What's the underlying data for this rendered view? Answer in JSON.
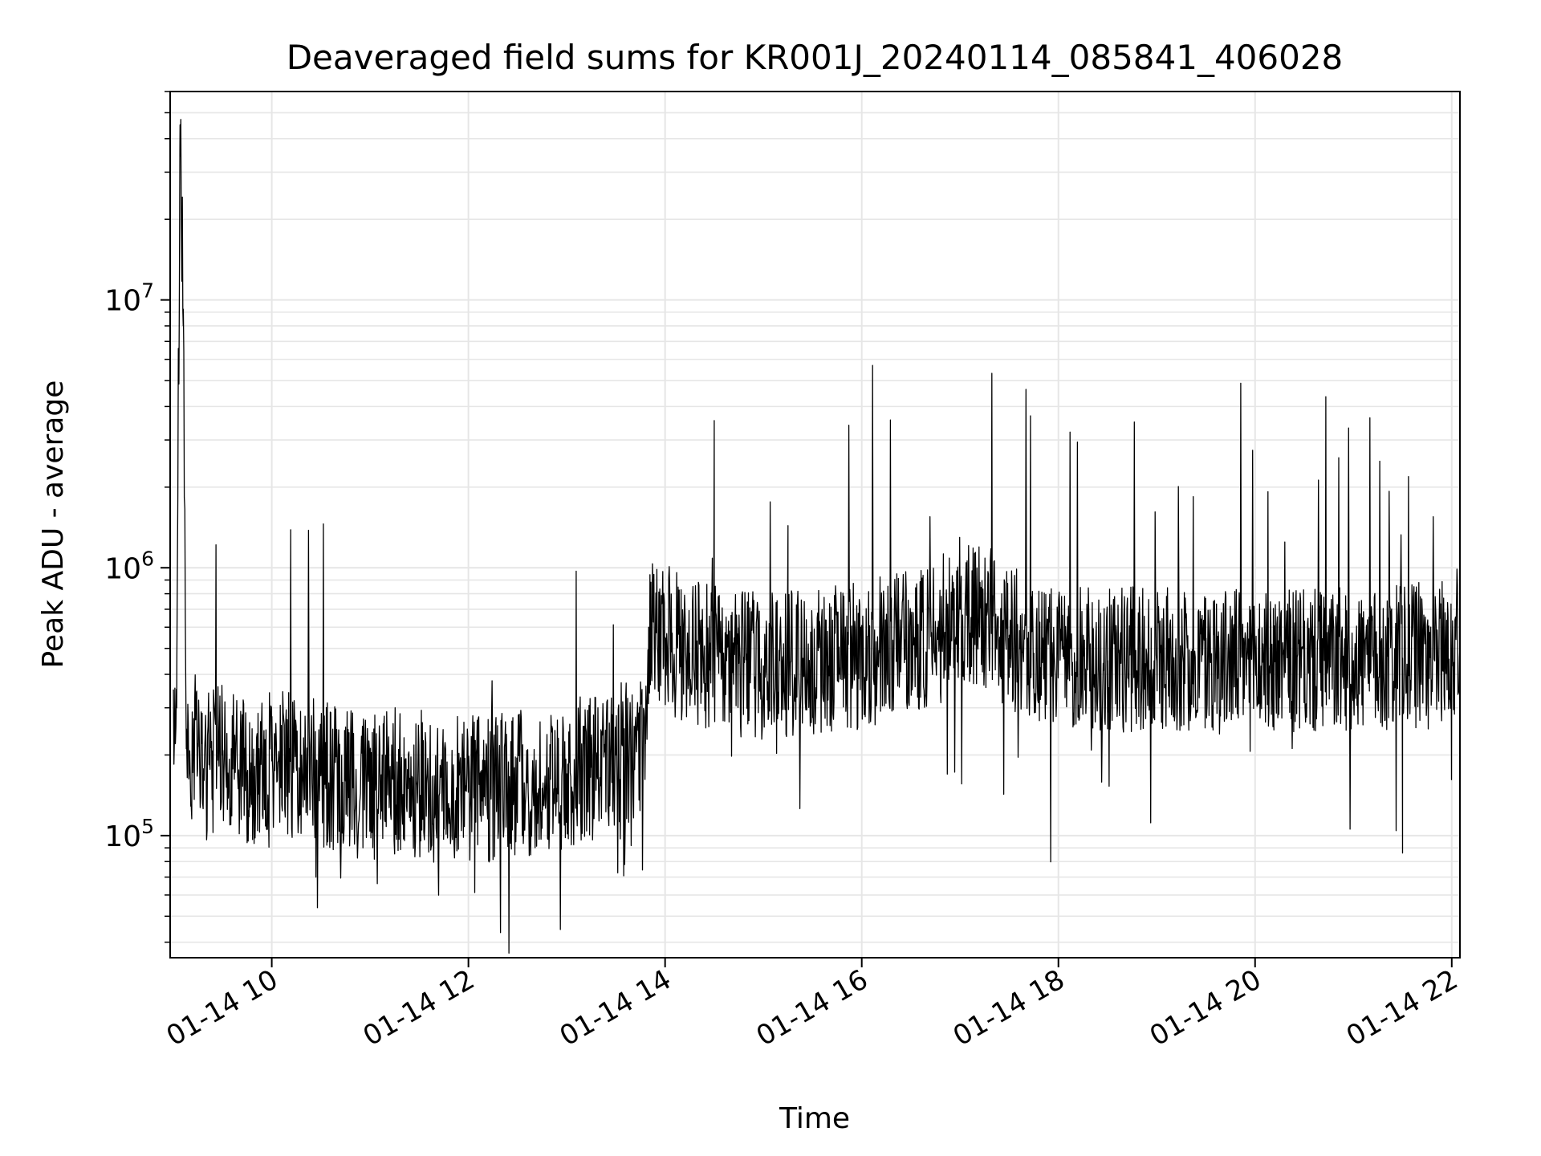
{
  "chart_data": {
    "type": "line",
    "title": "Deaveraged field sums for KR001J_20240114_085841_406028",
    "xlabel": "Time",
    "ylabel": "Peak ADU - average",
    "yscale": "log",
    "xlim": [
      "2024-01-14 08:58",
      "2024-01-14 22:05"
    ],
    "ylim": [
      35000,
      60000000
    ],
    "grid": true,
    "line_color": "#000000",
    "x_ticks": [
      "01-14 10",
      "01-14 12",
      "01-14 14",
      "01-14 16",
      "01-14 18",
      "01-14 20",
      "01-14 22"
    ],
    "y_ticks": [
      {
        "base": "10",
        "exp": "5",
        "value": 100000
      },
      {
        "base": "10",
        "exp": "6",
        "value": 1000000
      },
      {
        "base": "10",
        "exp": "7",
        "value": 10000000
      }
    ],
    "series": [
      {
        "x": [
          "2024-01-14 09:00",
          "2024-01-14 09:02",
          "2024-01-14 09:04",
          "2024-01-14 09:06",
          "2024-01-14 09:08",
          "2024-01-14 09:10",
          "2024-01-14 09:15",
          "2024-01-14 09:20",
          "2024-01-14 09:30",
          "2024-01-14 09:45",
          "2024-01-14 10:00",
          "2024-01-14 10:15",
          "2024-01-14 10:30",
          "2024-01-14 10:45",
          "2024-01-14 11:00",
          "2024-01-14 11:15",
          "2024-01-14 11:30",
          "2024-01-14 11:45",
          "2024-01-14 12:00",
          "2024-01-14 12:15",
          "2024-01-14 12:30",
          "2024-01-14 12:45",
          "2024-01-14 13:00",
          "2024-01-14 13:15",
          "2024-01-14 13:30",
          "2024-01-14 13:48",
          "2024-01-14 13:50",
          "2024-01-14 14:00",
          "2024-01-14 14:15",
          "2024-01-14 14:30",
          "2024-01-14 14:45",
          "2024-01-14 15:00",
          "2024-01-14 15:15",
          "2024-01-14 15:30",
          "2024-01-14 15:45",
          "2024-01-14 16:00",
          "2024-01-14 16:15",
          "2024-01-14 16:30",
          "2024-01-14 16:45",
          "2024-01-14 17:00",
          "2024-01-14 17:15",
          "2024-01-14 17:30",
          "2024-01-14 17:45",
          "2024-01-14 18:00",
          "2024-01-14 18:30",
          "2024-01-14 19:00",
          "2024-01-14 19:30",
          "2024-01-14 20:00",
          "2024-01-14 20:30",
          "2024-01-14 21:00",
          "2024-01-14 21:30",
          "2024-01-14 21:45",
          "2024-01-14 22:00",
          "2024-01-14 22:05"
        ],
        "y": [
          350000,
          300000,
          45000000,
          8000000,
          250000,
          200000,
          220000,
          180000,
          200000,
          170000,
          190000,
          180000,
          170000,
          160000,
          150000,
          160000,
          140000,
          150000,
          150000,
          150000,
          160000,
          150000,
          170000,
          180000,
          200000,
          220000,
          600000,
          550000,
          480000,
          460000,
          440000,
          430000,
          440000,
          450000,
          460000,
          470000,
          500000,
          520000,
          560000,
          700000,
          650000,
          560000,
          480000,
          450000,
          450000,
          460000,
          450000,
          450000,
          440000,
          450000,
          460000,
          480000,
          500000,
          560000
        ]
      }
    ]
  }
}
